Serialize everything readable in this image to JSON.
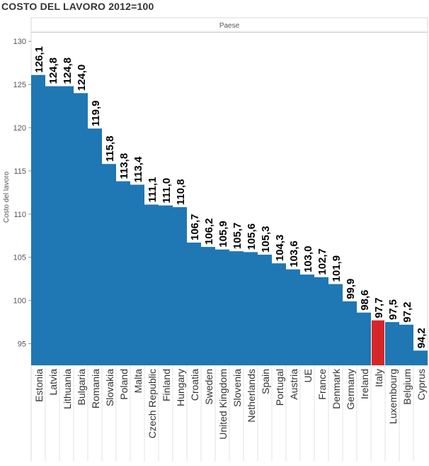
{
  "title": "COSTO DEL LAVORO 2012=100",
  "chart_data": {
    "type": "bar",
    "title": "COSTO DEL LAVORO 2012=100",
    "column_header": "Paese",
    "ylabel": "Costo del lavoro",
    "xlabel": "",
    "ylim": [
      92.5,
      131
    ],
    "yticks": [
      95,
      100,
      105,
      110,
      115,
      120,
      125,
      130
    ],
    "grid": false,
    "categories": [
      "Estonia",
      "Latvia",
      "Lithuania",
      "Bulgaria",
      "Romania",
      "Slovakia",
      "Poland",
      "Malta",
      "Czech Republic",
      "Finland",
      "Hungary",
      "Croatia",
      "Sweden",
      "United Kingdom",
      "Slovenia",
      "Netherlands",
      "Spain",
      "Portugal",
      "Austria",
      "UE",
      "France",
      "Denmark",
      "Germany",
      "Ireland",
      "Italy",
      "Luxembourg",
      "Belgium",
      "Cyprus"
    ],
    "values": [
      126.1,
      124.8,
      124.8,
      124.0,
      119.9,
      115.8,
      113.8,
      113.4,
      111.1,
      111.0,
      110.8,
      106.7,
      106.2,
      105.9,
      105.7,
      105.6,
      105.3,
      104.3,
      103.6,
      103.0,
      102.7,
      101.9,
      99.9,
      98.6,
      97.7,
      97.5,
      97.2,
      94.2
    ],
    "value_labels": [
      "126,1",
      "124,8",
      "124,8",
      "124,0",
      "119,9",
      "115,8",
      "113,8",
      "113,4",
      "111,1",
      "111,0",
      "110,8",
      "106,7",
      "106,2",
      "105,9",
      "105,7",
      "105,6",
      "105,3",
      "104,3",
      "103,6",
      "103,0",
      "102,7",
      "101,9",
      "99,9",
      "98,6",
      "97,7",
      "97,5",
      "97,2",
      "94,2"
    ],
    "highlight": "Italy",
    "colors": {
      "bar": "#1f77b4",
      "highlight": "#d62728"
    }
  }
}
